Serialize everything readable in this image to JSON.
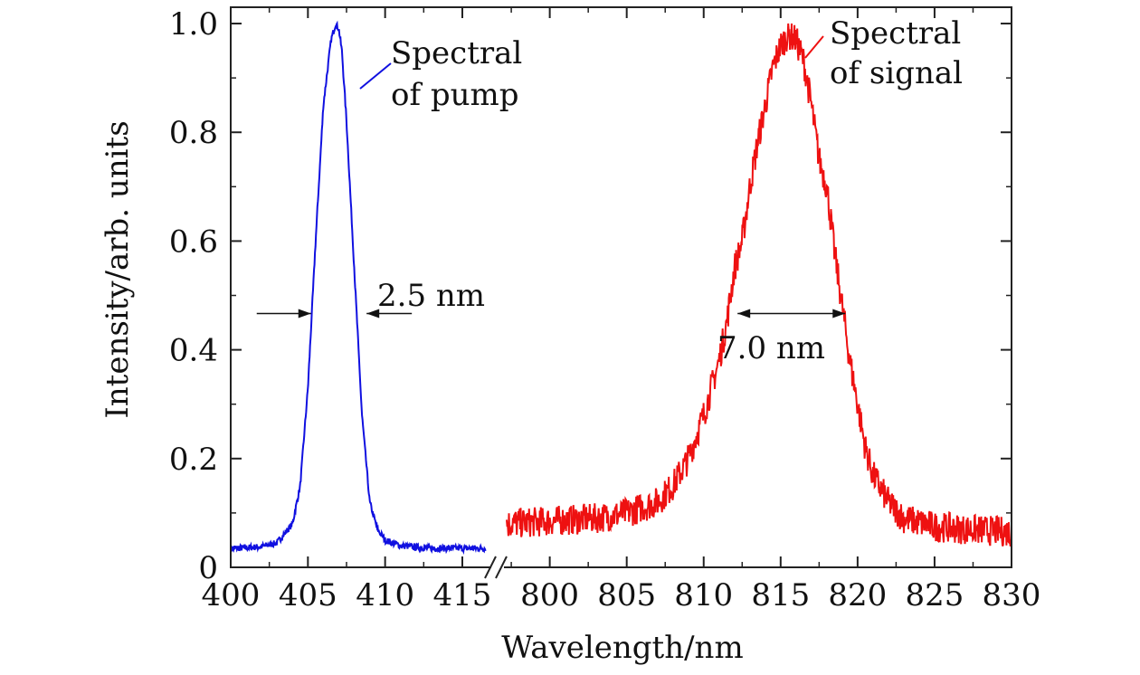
{
  "chart_data": {
    "type": "line",
    "title": "",
    "xlabel": "Wavelength/nm",
    "ylabel": "Intensity/arb. units",
    "ylim": [
      0,
      1.03
    ],
    "axis_break": true,
    "x_segments": [
      {
        "xlim": [
          400,
          416.7
        ],
        "ticks": [
          400,
          405,
          410,
          415
        ],
        "tick_labels": [
          "400",
          "405",
          "410",
          "415"
        ],
        "minor_step": 2.5
      },
      {
        "xlim": [
          797.2,
          830
        ],
        "ticks": [
          800,
          805,
          810,
          815,
          820,
          825,
          830
        ],
        "tick_labels": [
          "800",
          "805",
          "810",
          "815",
          "820",
          "825",
          "830"
        ],
        "minor_step": 2.5
      }
    ],
    "yticks": [
      0,
      0.2,
      0.4,
      0.6,
      0.8,
      1.0
    ],
    "ytick_labels": [
      "0",
      "0.2",
      "0.4",
      "0.6",
      "0.8",
      "1.0"
    ],
    "y_minor_step": 0.1,
    "series": [
      {
        "name": "Spectral of pump",
        "color": "#1010e0",
        "segment": 0,
        "x": [
          400,
          401,
          402,
          403,
          404,
          404.5,
          405,
          405.5,
          406,
          406.5,
          406.8,
          407,
          407.2,
          407.5,
          408,
          408.5,
          409,
          409.5,
          410,
          411,
          412,
          413,
          414,
          415,
          416.5
        ],
        "y": [
          0.035,
          0.036,
          0.038,
          0.045,
          0.08,
          0.15,
          0.33,
          0.6,
          0.85,
          0.97,
          1.0,
          0.99,
          0.95,
          0.82,
          0.55,
          0.28,
          0.12,
          0.07,
          0.05,
          0.04,
          0.037,
          0.035,
          0.035,
          0.035,
          0.035
        ]
      },
      {
        "name": "Spectral of signal",
        "color": "#ee1111",
        "segment": 1,
        "x": [
          797.2,
          800,
          803,
          805,
          807,
          808,
          809,
          810,
          811,
          811.5,
          812,
          812.5,
          813,
          813.5,
          814,
          814.5,
          815,
          815.5,
          816,
          816.5,
          817,
          817.5,
          818,
          818.5,
          819,
          819.5,
          820,
          820.5,
          821,
          822,
          823,
          825,
          827,
          830
        ],
        "y": [
          0.08,
          0.085,
          0.09,
          0.1,
          0.12,
          0.15,
          0.2,
          0.28,
          0.38,
          0.45,
          0.55,
          0.6,
          0.7,
          0.78,
          0.85,
          0.92,
          0.96,
          0.98,
          0.97,
          0.93,
          0.85,
          0.75,
          0.7,
          0.58,
          0.48,
          0.38,
          0.3,
          0.22,
          0.17,
          0.12,
          0.09,
          0.075,
          0.07,
          0.065
        ]
      }
    ],
    "legend_labels": [
      {
        "line1": "Spectral",
        "line2": "of pump",
        "color": "#1010e0"
      },
      {
        "line1": "Spectral",
        "line2": "of signal",
        "color": "#ee1111"
      }
    ],
    "annotations": [
      {
        "text": "2.5 nm",
        "x1": 405.2,
        "x2": 408.8,
        "y": 0.46
      },
      {
        "text": "7.0 nm",
        "x1": 812.2,
        "x2": 819.2,
        "y": 0.46
      }
    ]
  }
}
